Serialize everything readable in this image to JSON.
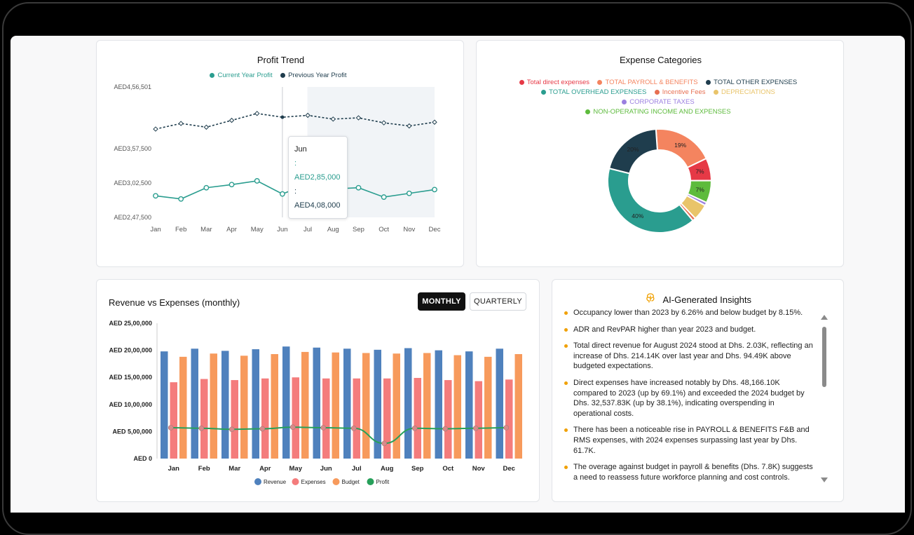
{
  "profit_trend": {
    "title": "Profit Trend",
    "legend": [
      {
        "label": "Current Year Profit",
        "color": "#2a9d8f"
      },
      {
        "label": "Previous Year Profit",
        "color": "#1f3d4d"
      }
    ],
    "y_ticks": [
      "AED4,56,501",
      "AED3,57,500",
      "AED3,02,500",
      "AED2,47,500"
    ],
    "tooltip": {
      "month": "Jun",
      "current": ": AED2,85,000",
      "previous": ": AED4,08,000"
    },
    "highlight_from": "Jul"
  },
  "expense_categories": {
    "title": "Expense Categories",
    "legend": [
      {
        "label": "Total direct expenses",
        "color": "#e63946"
      },
      {
        "label": "TOTAL PAYROLL & BENEFITS",
        "color": "#f4845f"
      },
      {
        "label": "TOTAL OTHER EXPENSES",
        "color": "#1f3d4d"
      },
      {
        "label": "TOTAL OVERHEAD EXPENSES",
        "color": "#2a9d8f"
      },
      {
        "label": "Incentive Fees",
        "color": "#e76f51"
      },
      {
        "label": "DEPRECIATIONS",
        "color": "#e9c46a"
      },
      {
        "label": "CORPORATE TAXES",
        "color": "#9b7fe0"
      },
      {
        "label": "NON-OPERATING INCOME AND EXPENSES",
        "color": "#5dbb3c"
      }
    ]
  },
  "revenue_expenses": {
    "title": "Revenue vs Expenses (monthly)",
    "toggle_monthly": "MONTHLY",
    "toggle_quarterly": "QUARTERLY",
    "y_ticks": [
      "AED 25,00,000",
      "AED 20,00,000",
      "AED 15,00,000",
      "AED 10,00,000",
      "AED 5,00,000",
      "AED 0"
    ],
    "legend": [
      {
        "label": "Revenue",
        "color": "#4f81bd"
      },
      {
        "label": "Expenses",
        "color": "#f47c7c"
      },
      {
        "label": "Budget",
        "color": "#f79a5c"
      },
      {
        "label": "Profit",
        "color": "#27a05a"
      }
    ]
  },
  "insights": {
    "title": "AI-Generated Insights",
    "items": [
      "Occupancy lower than 2023 by 6.26% and below budget by 8.15%.",
      "ADR and RevPAR higher than year 2023 and budget.",
      "Total direct revenue for August 2024 stood at Dhs. 2.03K, reflecting an increase of Dhs. 214.14K over last year and Dhs. 94.49K above budgeted expectations.",
      "Direct expenses have increased notably by Dhs. 48,166.10K compared to 2023 (up by 69.1%) and exceeded the 2024 budget by Dhs. 32,537.83K (up by 38.1%), indicating overspending in operational costs.",
      "There has been a noticeable rise in PAYROLL & BENEFITS F&B and RMS expenses, with 2024 expenses surpassing last year by Dhs. 61.7K.",
      "The overage against budget in payroll & benefits (Dhs. 7.8K) suggests a need to reassess future workforce planning and cost controls."
    ]
  },
  "chart_data": [
    {
      "type": "line",
      "title": "Profit Trend",
      "x": [
        "Jan",
        "Feb",
        "Mar",
        "Apr",
        "May",
        "Jun",
        "Jul",
        "Aug",
        "Sep",
        "Oct",
        "Nov",
        "Dec"
      ],
      "series": [
        {
          "name": "Current Year Profit",
          "values": [
            282000,
            277000,
            295000,
            300000,
            306000,
            285000,
            301000,
            293000,
            295000,
            280000,
            286000,
            292000
          ]
        },
        {
          "name": "Previous Year Profit",
          "values": [
            389000,
            398000,
            392000,
            403000,
            414000,
            408000,
            411000,
            405000,
            407000,
            399000,
            394000,
            400000
          ]
        }
      ],
      "ylabel": "",
      "ylim": [
        247500,
        456501
      ],
      "grid": false,
      "legend": "top"
    },
    {
      "type": "pie",
      "title": "Expense Categories",
      "categories": [
        "Total direct expenses",
        "TOTAL PAYROLL & BENEFITS",
        "TOTAL OTHER EXPENSES",
        "TOTAL OVERHEAD EXPENSES",
        "Incentive Fees",
        "DEPRECIATIONS",
        "CORPORATE TAXES",
        "NON-OPERATING INCOME AND EXPENSES"
      ],
      "values": [
        7,
        19,
        20,
        40,
        1,
        5,
        1,
        7
      ],
      "display_order": [
        "TOTAL PAYROLL & BENEFITS",
        "Total direct expenses",
        "NON-OPERATING INCOME AND EXPENSES",
        "CORPORATE TAXES",
        "DEPRECIATIONS",
        "Incentive Fees",
        "TOTAL OVERHEAD EXPENSES",
        "TOTAL OTHER EXPENSES"
      ],
      "data_labels": {
        "TOTAL PAYROLL & BENEFITS": "19%",
        "Total direct expenses": "7%",
        "NON-OPERATING INCOME AND EXPENSES": "7%",
        "TOTAL OVERHEAD EXPENSES": "40%",
        "TOTAL OTHER EXPENSES": "20%"
      },
      "donut": true,
      "legend": "top"
    },
    {
      "type": "bar",
      "title": "Revenue vs Expenses (monthly)",
      "categories": [
        "Jan",
        "Feb",
        "Mar",
        "Apr",
        "May",
        "Jun",
        "Jul",
        "Aug",
        "Sep",
        "Oct",
        "Nov",
        "Dec"
      ],
      "series": [
        {
          "name": "Revenue",
          "type": "bar",
          "values": [
            1980000,
            2030000,
            1990000,
            2020000,
            2070000,
            2050000,
            2030000,
            2010000,
            2040000,
            2000000,
            1980000,
            2030000
          ]
        },
        {
          "name": "Expenses",
          "type": "bar",
          "values": [
            1410000,
            1470000,
            1450000,
            1480000,
            1500000,
            1480000,
            1480000,
            1480000,
            1490000,
            1450000,
            1430000,
            1460000
          ]
        },
        {
          "name": "Budget",
          "type": "bar",
          "values": [
            1880000,
            1940000,
            1900000,
            1930000,
            1970000,
            1960000,
            1950000,
            1940000,
            1950000,
            1910000,
            1880000,
            1930000
          ]
        },
        {
          "name": "Profit",
          "type": "line",
          "values": [
            570000,
            560000,
            540000,
            550000,
            580000,
            570000,
            560000,
            280000,
            560000,
            550000,
            560000,
            570000
          ]
        }
      ],
      "ylabel": "",
      "ylim": [
        0,
        2500000
      ],
      "grid": false,
      "legend": "bottom"
    }
  ]
}
